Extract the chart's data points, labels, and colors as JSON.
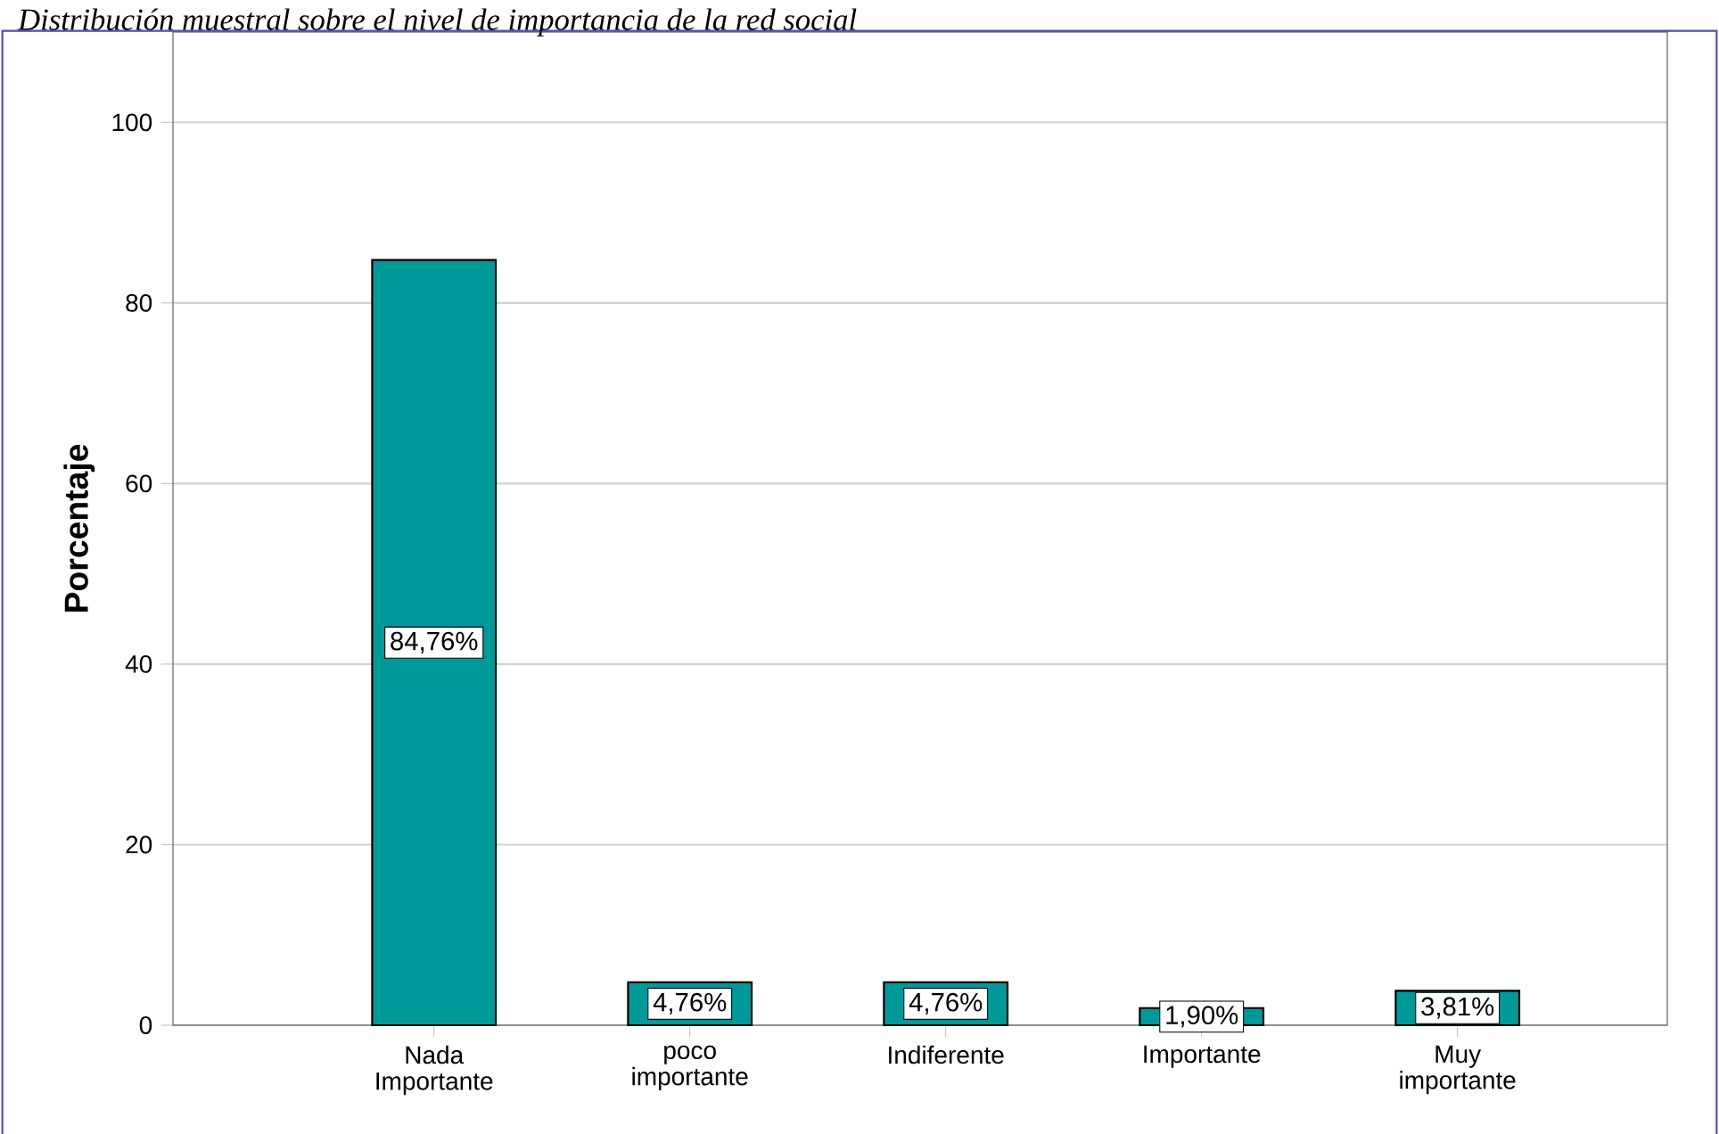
{
  "chart_data": {
    "type": "bar",
    "title": "Distribución muestral sobre el nivel de importancia de la red social",
    "ylabel": "Porcentaje",
    "categories": [
      "Nada Importante",
      "poco importante",
      "Indiferente",
      "Importante",
      "Muy importante"
    ],
    "values": [
      84.76,
      4.76,
      4.76,
      1.9,
      3.81
    ],
    "value_labels": [
      "84,76%",
      "4,76%",
      "4,76%",
      "1,90%",
      "3,81%"
    ],
    "color": "#009999",
    "ylim": [
      0,
      110
    ],
    "yticks": [
      0,
      20,
      40,
      60,
      80,
      100
    ],
    "grid": "y"
  }
}
